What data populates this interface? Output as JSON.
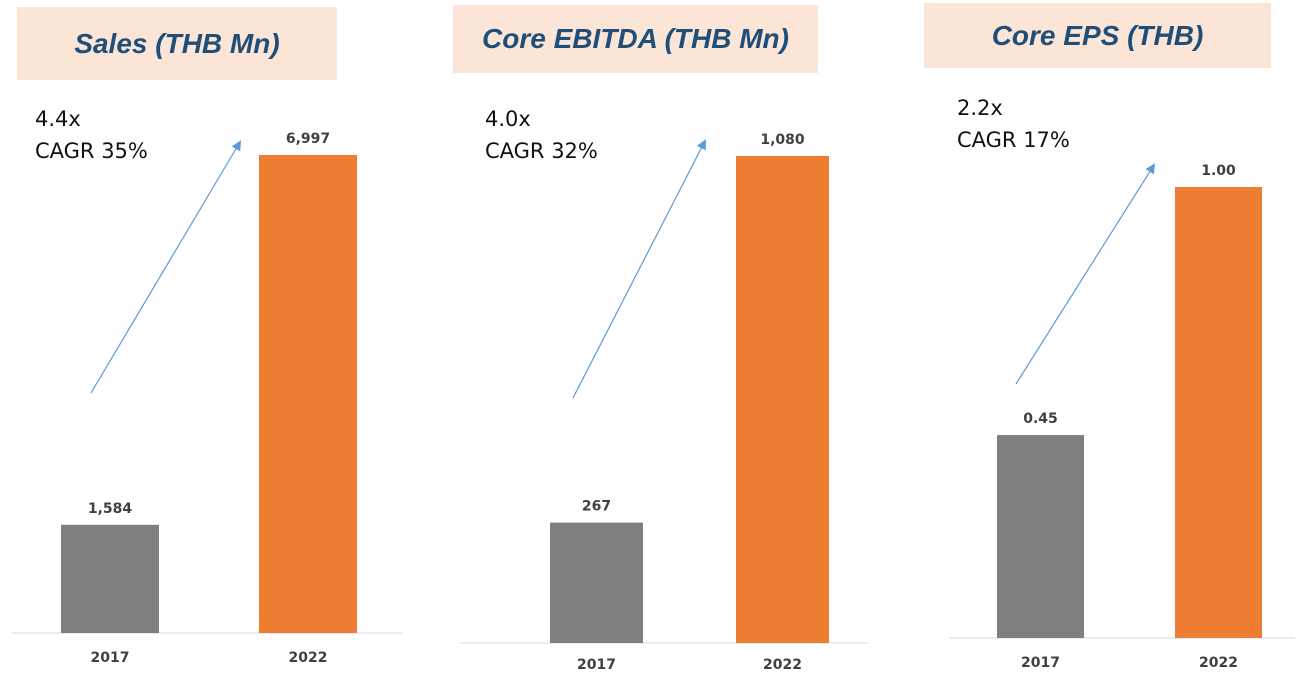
{
  "colors": {
    "bar_2017": "#7f7f7f",
    "bar_2022": "#ed7d31",
    "arrow": "#5b9bd5",
    "title_bg": "#fbe5d6",
    "title_text": "#1f4e79"
  },
  "chart_data": [
    {
      "type": "bar",
      "title": "Sales (THB Mn)",
      "categories": [
        "2017",
        "2022"
      ],
      "values": [
        1584,
        6997
      ],
      "value_labels": [
        "1,584",
        "6,997"
      ],
      "growth": "4.4x",
      "cagr": "CAGR 35%",
      "ylim": [
        0,
        7800
      ]
    },
    {
      "type": "bar",
      "title": "Core EBITDA (THB Mn)",
      "categories": [
        "2017",
        "2022"
      ],
      "values": [
        267,
        1080
      ],
      "value_labels": [
        "267",
        "1,080"
      ],
      "growth": "4.0x",
      "cagr": "CAGR 32%",
      "ylim": [
        0,
        1200
      ]
    },
    {
      "type": "bar",
      "title": "Core EPS (THB)",
      "categories": [
        "2017",
        "2022"
      ],
      "values": [
        0.45,
        1.0
      ],
      "value_labels": [
        "0.45",
        "1.00"
      ],
      "growth": "2.2x",
      "cagr": "CAGR 17%",
      "ylim": [
        0,
        1.2
      ]
    }
  ]
}
